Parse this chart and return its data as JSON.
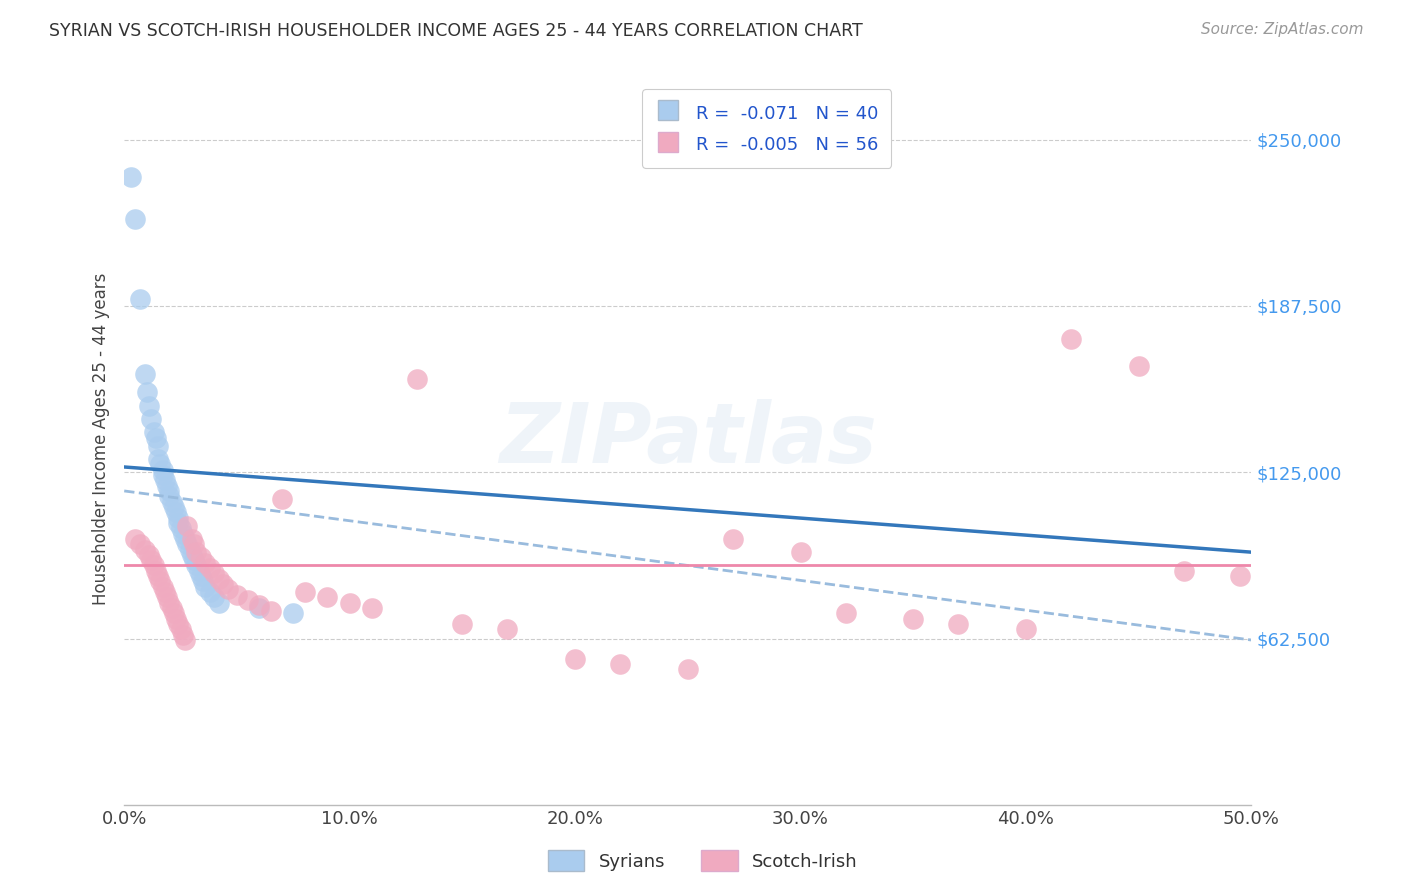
{
  "title": "SYRIAN VS SCOTCH-IRISH HOUSEHOLDER INCOME AGES 25 - 44 YEARS CORRELATION CHART",
  "source": "Source: ZipAtlas.com",
  "ylabel": "Householder Income Ages 25 - 44 years",
  "xlim": [
    0.0,
    0.5
  ],
  "ylim": [
    0,
    275000
  ],
  "yticks": [
    62500,
    125000,
    187500,
    250000
  ],
  "ytick_labels": [
    "$62,500",
    "$125,000",
    "$187,500",
    "$250,000"
  ],
  "xticks": [
    0.0,
    0.1,
    0.2,
    0.3,
    0.4,
    0.5
  ],
  "xtick_labels": [
    "0.0%",
    "10.0%",
    "20.0%",
    "30.0%",
    "40.0%",
    "50.0%"
  ],
  "color_syrians": "#aaccee",
  "color_scotch": "#f0aac0",
  "color_trend_syrians": "#3377bb",
  "color_trend_scotch_dash": "#99bbdd",
  "color_trend_scotch_solid": "#ee88aa",
  "background_color": "#ffffff",
  "syrians_x": [
    0.003,
    0.005,
    0.007,
    0.009,
    0.01,
    0.011,
    0.012,
    0.013,
    0.014,
    0.015,
    0.015,
    0.016,
    0.017,
    0.017,
    0.018,
    0.019,
    0.02,
    0.02,
    0.021,
    0.022,
    0.023,
    0.024,
    0.024,
    0.025,
    0.026,
    0.027,
    0.028,
    0.029,
    0.03,
    0.031,
    0.032,
    0.033,
    0.034,
    0.035,
    0.036,
    0.038,
    0.04,
    0.042,
    0.06,
    0.075
  ],
  "syrians_y": [
    236000,
    220000,
    190000,
    162000,
    155000,
    150000,
    145000,
    140000,
    138000,
    135000,
    130000,
    128000,
    126000,
    124000,
    122000,
    120000,
    118000,
    116000,
    114000,
    112000,
    110000,
    108000,
    106000,
    104000,
    102000,
    100000,
    98000,
    96000,
    94000,
    92000,
    90000,
    88000,
    86000,
    84000,
    82000,
    80000,
    78000,
    76000,
    74000,
    72000
  ],
  "scotch_x": [
    0.005,
    0.007,
    0.009,
    0.011,
    0.012,
    0.013,
    0.014,
    0.015,
    0.016,
    0.017,
    0.018,
    0.019,
    0.02,
    0.021,
    0.022,
    0.023,
    0.024,
    0.025,
    0.026,
    0.027,
    0.028,
    0.03,
    0.031,
    0.032,
    0.034,
    0.036,
    0.038,
    0.04,
    0.042,
    0.044,
    0.046,
    0.05,
    0.055,
    0.06,
    0.065,
    0.07,
    0.08,
    0.09,
    0.1,
    0.11,
    0.13,
    0.15,
    0.17,
    0.2,
    0.22,
    0.25,
    0.27,
    0.3,
    0.32,
    0.35,
    0.37,
    0.4,
    0.42,
    0.45,
    0.47,
    0.495
  ],
  "scotch_y": [
    100000,
    98000,
    96000,
    94000,
    92000,
    90000,
    88000,
    86000,
    84000,
    82000,
    80000,
    78000,
    76000,
    74000,
    72000,
    70000,
    68000,
    66000,
    64000,
    62000,
    105000,
    100000,
    98000,
    95000,
    93000,
    91000,
    89000,
    87000,
    85000,
    83000,
    81000,
    79000,
    77000,
    75000,
    73000,
    115000,
    80000,
    78000,
    76000,
    74000,
    160000,
    68000,
    66000,
    55000,
    53000,
    51000,
    100000,
    95000,
    72000,
    70000,
    68000,
    66000,
    175000,
    165000,
    88000,
    86000
  ],
  "trend_syrian_x0": 0.0,
  "trend_syrian_x1": 0.5,
  "trend_syrian_y0": 127000,
  "trend_syrian_y1": 95000,
  "trend_scotch_dash_x0": 0.0,
  "trend_scotch_dash_x1": 0.5,
  "trend_scotch_dash_y0": 118000,
  "trend_scotch_dash_y1": 62000,
  "trend_scotch_solid_y": 90000
}
